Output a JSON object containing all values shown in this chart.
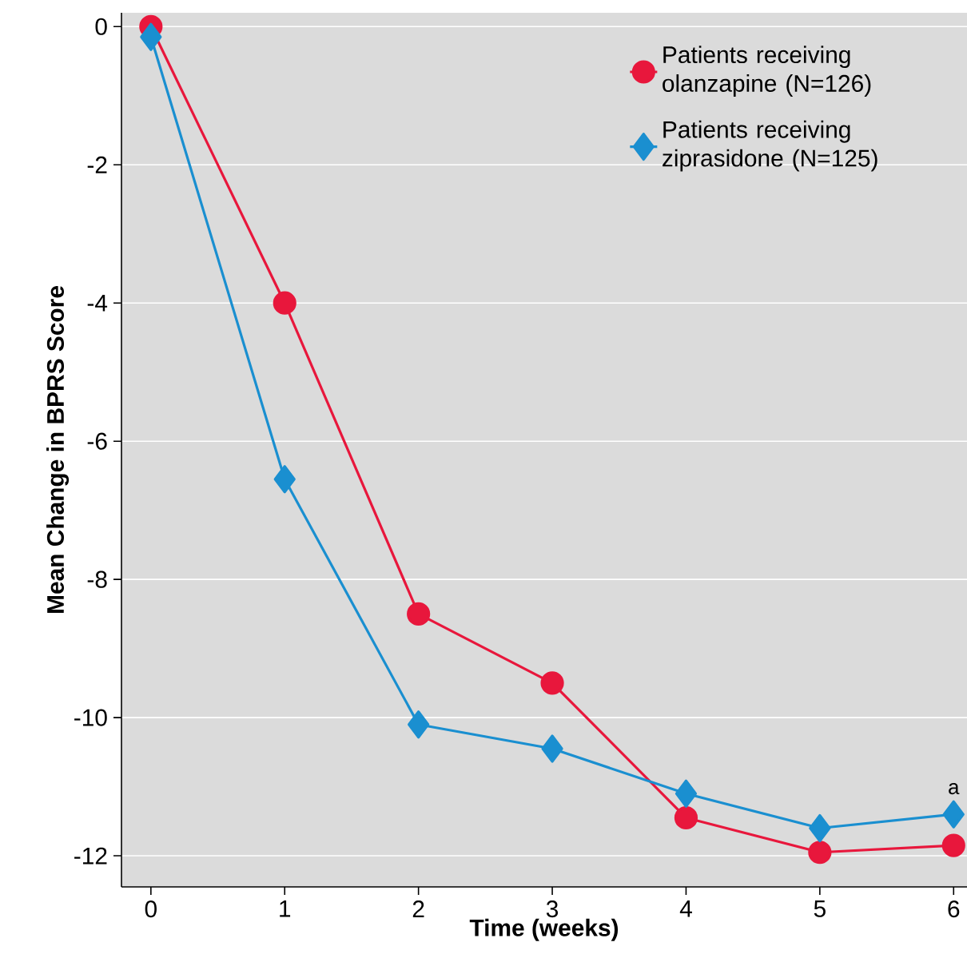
{
  "chart_data": {
    "type": "line",
    "xlabel": "Time (weeks)",
    "ylabel": "Mean Change in BPRS Score",
    "x": [
      0,
      1,
      2,
      3,
      4,
      5,
      6
    ],
    "series": [
      {
        "name": "Patients receiving olanzapine (N=126)",
        "color": "#e8173c",
        "marker": "circle",
        "values": [
          0,
          -4.0,
          -8.5,
          -9.5,
          -11.45,
          -11.95,
          -11.85
        ]
      },
      {
        "name": "Patients receiving ziprasidone (N=125)",
        "color": "#1a8fd0",
        "marker": "diamond",
        "values": [
          -0.15,
          -6.55,
          -10.1,
          -10.45,
          -11.1,
          -11.6,
          -11.4
        ]
      }
    ],
    "xlim": [
      -0.22,
      6.1
    ],
    "ylim": [
      -12.45,
      0.2
    ],
    "xticks": [
      0,
      1,
      2,
      3,
      4,
      5,
      6
    ],
    "yticks": [
      0,
      -2,
      -4,
      -6,
      -8,
      -10,
      -12
    ],
    "grid": "y",
    "legend": "top right",
    "line_style": "solid",
    "annotations": [
      {
        "text": "a",
        "x": 6,
        "y": -11.4
      }
    ]
  }
}
